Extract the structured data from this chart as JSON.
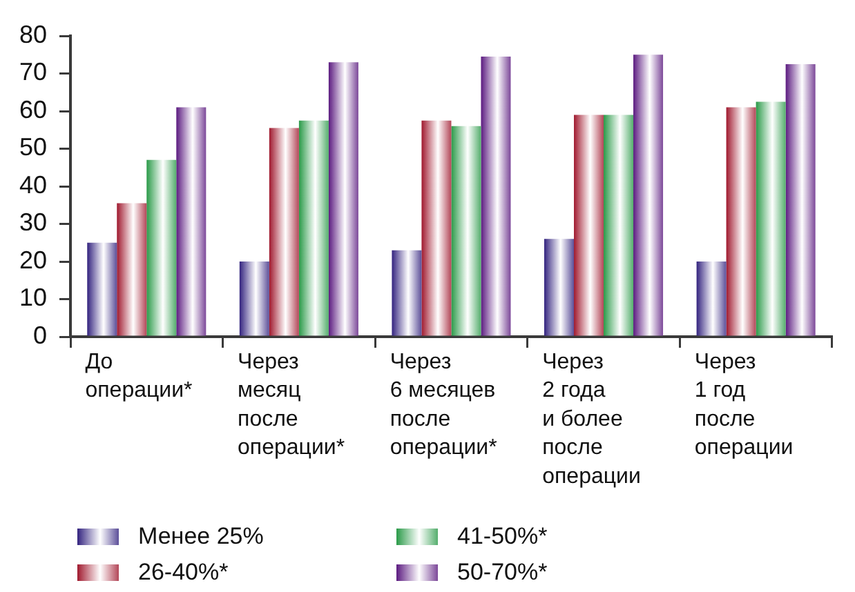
{
  "chart_data": {
    "type": "bar",
    "categories": [
      "До\nоперации*",
      "Через\nмесяц\nпосле\nоперации*",
      "Через\n6 месяцев\nпосле\nоперации*",
      "Через\n2 года\nи более\nпосле\nоперации",
      "Через\n1 год\nпосле\nоперации"
    ],
    "series": [
      {
        "name": "Менее 25%",
        "color": "#33237f",
        "values": [
          25,
          20,
          23,
          26,
          20
        ]
      },
      {
        "name": "26-40%*",
        "color": "#a0192e",
        "values": [
          35.5,
          55.5,
          57.5,
          59,
          61
        ]
      },
      {
        "name": "41-50%*",
        "color": "#2a9a48",
        "values": [
          47,
          57.5,
          56,
          59,
          62.5
        ]
      },
      {
        "name": "50-70%*",
        "color": "#5b1a80",
        "values": [
          61,
          73,
          74.5,
          75,
          72.5
        ]
      }
    ],
    "ylim": [
      0,
      80
    ],
    "yticks": [
      0,
      10,
      20,
      30,
      40,
      50,
      60,
      70,
      80
    ],
    "grid": false,
    "legend": "bottom"
  }
}
